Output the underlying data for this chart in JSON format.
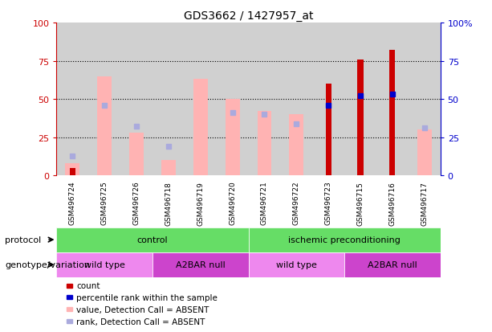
{
  "title": "GDS3662 / 1427957_at",
  "samples": [
    "GSM496724",
    "GSM496725",
    "GSM496726",
    "GSM496718",
    "GSM496719",
    "GSM496720",
    "GSM496721",
    "GSM496722",
    "GSM496723",
    "GSM496715",
    "GSM496716",
    "GSM496717"
  ],
  "count_values": [
    5,
    0,
    0,
    0,
    0,
    0,
    0,
    0,
    60,
    76,
    82,
    0
  ],
  "percentile_rank": [
    null,
    null,
    null,
    null,
    null,
    null,
    null,
    null,
    46,
    52,
    53,
    null
  ],
  "pink_bar_values": [
    8,
    65,
    28,
    10,
    63,
    50,
    42,
    40,
    0,
    0,
    0,
    30
  ],
  "blue_square_values": [
    13,
    46,
    32,
    19,
    null,
    41,
    40,
    34,
    null,
    null,
    null,
    31
  ],
  "ylim": [
    0,
    100
  ],
  "yticks": [
    0,
    25,
    50,
    75,
    100
  ],
  "bar_color_dark_red": "#CC0000",
  "bar_color_pink": "#FFB3B3",
  "dot_color_blue": "#0000CC",
  "dot_color_light_blue": "#AAAADD",
  "left_axis_color": "#CC0000",
  "right_axis_color": "#0000CC",
  "col_bg_color": "#D0D0D0",
  "protocol_green": "#66DD66",
  "genotype_light_purple": "#EE88EE",
  "genotype_dark_purple": "#CC44CC",
  "legend_items": [
    {
      "color": "#CC0000",
      "label": "count"
    },
    {
      "color": "#0000CC",
      "label": "percentile rank within the sample"
    },
    {
      "color": "#FFB3B3",
      "label": "value, Detection Call = ABSENT"
    },
    {
      "color": "#AAAADD",
      "label": "rank, Detection Call = ABSENT"
    }
  ]
}
